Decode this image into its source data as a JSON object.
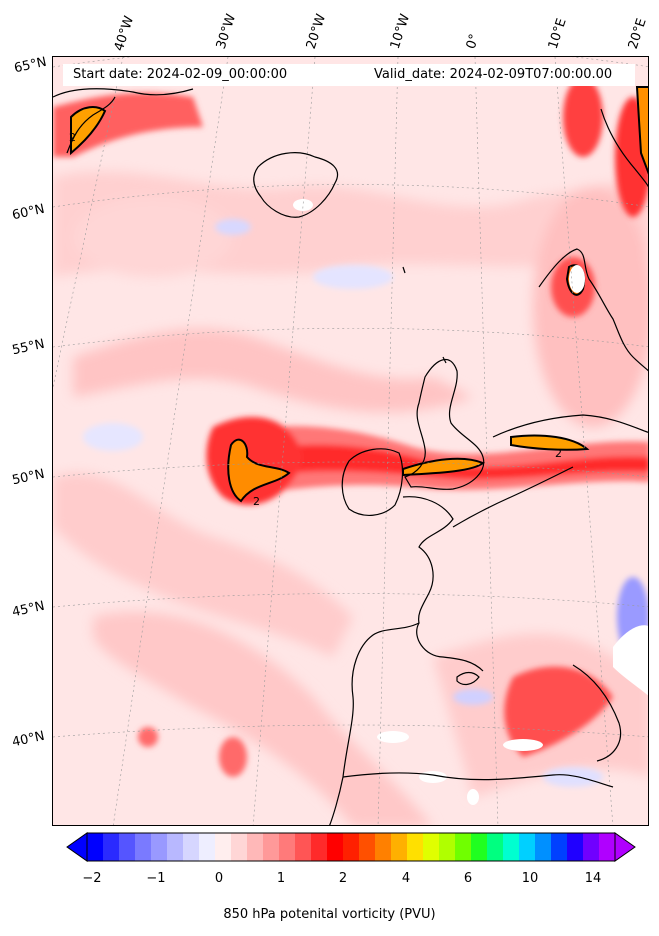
{
  "map": {
    "start_date": "Start date: 2024-02-09_00:00:00",
    "valid_date": "Valid_date: 2024-02-09T07:00:00.00",
    "longitude_labels": [
      "40°W",
      "30°W",
      "20°W",
      "10°W",
      "0°",
      "10°E",
      "20°E"
    ],
    "latitude_labels": [
      "65°N",
      "60°N",
      "55°N",
      "50°N",
      "45°N",
      "40°N"
    ],
    "contour_label": "2"
  },
  "colorbar": {
    "title": "850 hPa potenital vorticity (PVU)",
    "tick_labels": [
      "−2",
      "−1",
      "0",
      "1",
      "2",
      "4",
      "6",
      "10",
      "14"
    ],
    "colors": [
      "#0000ff",
      "#2a2aff",
      "#5555ff",
      "#7a7aff",
      "#9999ff",
      "#b8b8ff",
      "#d6d6ff",
      "#eeeeff",
      "#ffeeee",
      "#ffd6d6",
      "#ffb8b8",
      "#ff9999",
      "#ff7a7a",
      "#ff5555",
      "#ff2a2a",
      "#ff0000",
      "#ff2000",
      "#ff5000",
      "#ff8000",
      "#ffb000",
      "#ffe000",
      "#e0ff00",
      "#b0ff00",
      "#70ff00",
      "#20ff20",
      "#00ff80",
      "#00ffd0",
      "#00d0ff",
      "#0090ff",
      "#0040ff",
      "#2000ff",
      "#7000ff",
      "#b000ff"
    ]
  }
}
